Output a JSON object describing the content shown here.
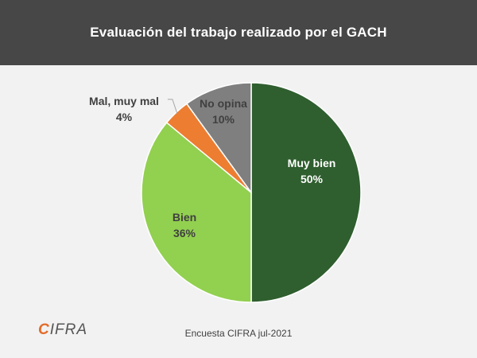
{
  "header": {
    "title": "Evaluación del trabajo realizado por el GACH"
  },
  "chart_data": {
    "type": "pie",
    "title": "Evaluación del trabajo realizado por el GACH",
    "slices": [
      {
        "label": "Muy bien",
        "value": 50,
        "value_label": "50%",
        "color": "#2f5e2f",
        "text_color": "#ffffff"
      },
      {
        "label": "Bien",
        "value": 36,
        "value_label": "36%",
        "color": "#92d050",
        "text_color": "#404040"
      },
      {
        "label": "Mal, muy mal",
        "value": 4,
        "value_label": "4%",
        "color": "#ed7d31",
        "text_color": "#404040"
      },
      {
        "label": "No opina",
        "value": 10,
        "value_label": "10%",
        "color": "#7f7f7f",
        "text_color": "#404040"
      }
    ]
  },
  "footer": {
    "logo_text": "IFRA",
    "logo_mark": "C",
    "source": "Encuesta CIFRA jul-2021"
  }
}
